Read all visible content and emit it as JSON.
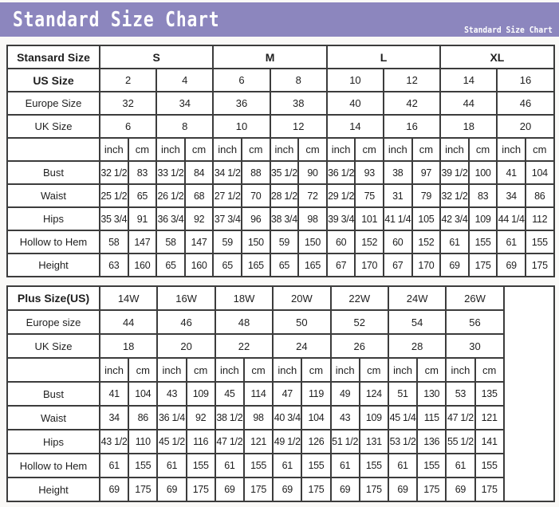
{
  "header": {
    "title": "Standard Size Chart",
    "subtitle": "Standard Size Chart"
  },
  "colors": {
    "header_bar": "#8c86be",
    "header_text": "#ffffff",
    "table_border": "#3c3c3c"
  },
  "units": [
    "inch",
    "cm"
  ],
  "standard_table": {
    "corner_label": "Stansard Size",
    "size_groups": [
      "S",
      "M",
      "L",
      "XL"
    ],
    "us_size": {
      "label": "US Size",
      "values": [
        "2",
        "4",
        "6",
        "8",
        "10",
        "12",
        "14",
        "16"
      ]
    },
    "europe_size": {
      "label": "Europe Size",
      "values": [
        "32",
        "34",
        "36",
        "38",
        "40",
        "42",
        "44",
        "46"
      ]
    },
    "uk_size": {
      "label": "UK Size",
      "values": [
        "6",
        "8",
        "10",
        "12",
        "14",
        "16",
        "18",
        "20"
      ]
    },
    "measure_rows": [
      {
        "label": "Bust",
        "values": [
          "32 1/2",
          "83",
          "33 1/2",
          "84",
          "34 1/2",
          "88",
          "35 1/2",
          "90",
          "36 1/2",
          "93",
          "38",
          "97",
          "39 1/2",
          "100",
          "41",
          "104"
        ]
      },
      {
        "label": "Waist",
        "values": [
          "25 1/2",
          "65",
          "26 1/2",
          "68",
          "27 1/2",
          "70",
          "28 1/2",
          "72",
          "29 1/2",
          "75",
          "31",
          "79",
          "32 1/2",
          "83",
          "34",
          "86"
        ]
      },
      {
        "label": "Hips",
        "values": [
          "35 3/4",
          "91",
          "36 3/4",
          "92",
          "37 3/4",
          "96",
          "38 3/4",
          "98",
          "39 3/4",
          "101",
          "41 1/4",
          "105",
          "42 3/4",
          "109",
          "44 1/4",
          "112"
        ]
      },
      {
        "label": "Hollow to Hem",
        "values": [
          "58",
          "147",
          "58",
          "147",
          "59",
          "150",
          "59",
          "150",
          "60",
          "152",
          "60",
          "152",
          "61",
          "155",
          "61",
          "155"
        ]
      },
      {
        "label": "Height",
        "values": [
          "63",
          "160",
          "65",
          "160",
          "65",
          "165",
          "65",
          "165",
          "67",
          "170",
          "67",
          "170",
          "69",
          "175",
          "69",
          "175"
        ]
      }
    ]
  },
  "plus_table": {
    "corner_label": "Plus Size(US)",
    "size_groups": [
      "14W",
      "16W",
      "18W",
      "20W",
      "22W",
      "24W",
      "26W"
    ],
    "europe_size": {
      "label": "Europe size",
      "values": [
        "44",
        "46",
        "48",
        "50",
        "52",
        "54",
        "56"
      ]
    },
    "uk_size": {
      "label": "UK Size",
      "values": [
        "18",
        "20",
        "22",
        "24",
        "26",
        "28",
        "30"
      ]
    },
    "measure_rows": [
      {
        "label": "Bust",
        "values": [
          "41",
          "104",
          "43",
          "109",
          "45",
          "114",
          "47",
          "119",
          "49",
          "124",
          "51",
          "130",
          "53",
          "135"
        ]
      },
      {
        "label": "Waist",
        "values": [
          "34",
          "86",
          "36 1/4",
          "92",
          "38 1/2",
          "98",
          "40 3/4",
          "104",
          "43",
          "109",
          "45 1/4",
          "115",
          "47 1/2",
          "121"
        ]
      },
      {
        "label": "Hips",
        "values": [
          "43 1/2",
          "110",
          "45 1/2",
          "116",
          "47 1/2",
          "121",
          "49 1/2",
          "126",
          "51 1/2",
          "131",
          "53 1/2",
          "136",
          "55 1/2",
          "141"
        ]
      },
      {
        "label": "Hollow to Hem",
        "values": [
          "61",
          "155",
          "61",
          "155",
          "61",
          "155",
          "61",
          "155",
          "61",
          "155",
          "61",
          "155",
          "61",
          "155"
        ]
      },
      {
        "label": "Height",
        "values": [
          "69",
          "175",
          "69",
          "175",
          "69",
          "175",
          "69",
          "175",
          "69",
          "175",
          "69",
          "175",
          "69",
          "175"
        ]
      }
    ]
  }
}
